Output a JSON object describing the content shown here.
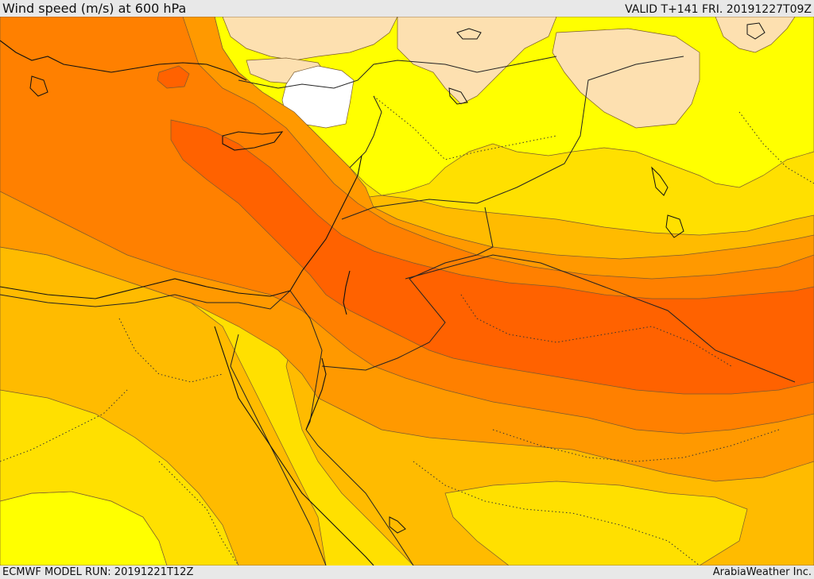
{
  "header": {
    "title": "Wind speed (m/s) at 600 hPa",
    "valid": "VALID T+141 FRI. 20191227T09Z"
  },
  "footer": {
    "model_run": "ECMWF MODEL RUN: 20191221T12Z",
    "credit": "ArabiaWeather Inc."
  },
  "map": {
    "variable": "wind speed",
    "level": "600 hPa",
    "units": "m/s",
    "colors": {
      "band_calm": "#ffffff",
      "band_1": "#fde0b0",
      "band_2": "#ffff00",
      "band_3": "#ffe000",
      "band_4": "#ffbb00",
      "band_5": "#ff9900",
      "band_6": "#ff8000",
      "band_7": "#ff6200"
    }
  }
}
